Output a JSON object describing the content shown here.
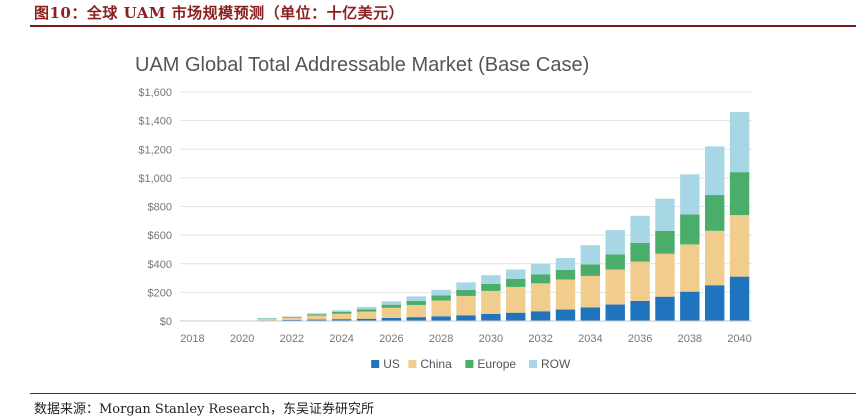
{
  "figure": {
    "header": "图10：全球 UAM 市场规模预测（单位：十亿美元）",
    "source": "数据来源：Morgan Stanley Research，东吴证券研究所"
  },
  "chart_data": {
    "type": "bar",
    "stacked": true,
    "title": "UAM Global Total Addressable Market (Base Case)",
    "xlabel": "",
    "ylabel": "",
    "ylim": [
      0,
      1600
    ],
    "grid": true,
    "legend_position": "bottom",
    "yticks": [
      0,
      200,
      400,
      600,
      800,
      1000,
      1200,
      1400,
      1600
    ],
    "ytick_labels": [
      "$0",
      "$200",
      "$400",
      "$600",
      "$800",
      "$1,000",
      "$1,200",
      "$1,400",
      "$1,600"
    ],
    "categories": [
      "2018",
      "2019",
      "2020",
      "2021",
      "2022",
      "2023",
      "2024",
      "2025",
      "2026",
      "2027",
      "2028",
      "2029",
      "2030",
      "2031",
      "2032",
      "2033",
      "2034",
      "2035",
      "2036",
      "2037",
      "2038",
      "2039",
      "2040"
    ],
    "tick_labels": [
      "2018",
      "2020",
      "2022",
      "2024",
      "2026",
      "2028",
      "2030",
      "2032",
      "2034",
      "2036",
      "2038",
      "2040"
    ],
    "series": [
      {
        "name": "US",
        "color": "#1f74bd",
        "values": [
          0,
          0,
          0,
          5,
          8,
          10,
          13,
          16,
          22,
          27,
          33,
          40,
          50,
          58,
          68,
          80,
          95,
          115,
          140,
          170,
          205,
          250,
          310
        ]
      },
      {
        "name": "China",
        "color": "#f0cd8c",
        "values": [
          0,
          0,
          0,
          10,
          15,
          28,
          38,
          50,
          70,
          85,
          110,
          135,
          160,
          180,
          195,
          210,
          220,
          245,
          275,
          300,
          330,
          380,
          430
        ]
      },
      {
        "name": "Europe",
        "color": "#4bad6a",
        "values": [
          0,
          0,
          0,
          3,
          5,
          9,
          12,
          16,
          22,
          28,
          35,
          42,
          50,
          57,
          62,
          68,
          80,
          105,
          130,
          160,
          210,
          250,
          300
        ]
      },
      {
        "name": "ROW",
        "color": "#a7d7e4",
        "values": [
          0,
          0,
          0,
          2,
          3,
          8,
          12,
          16,
          24,
          32,
          40,
          53,
          60,
          65,
          75,
          82,
          135,
          170,
          190,
          225,
          280,
          340,
          420
        ]
      }
    ]
  },
  "style": {
    "title_color": "#555555",
    "tick_color": "#777777",
    "grid_color": "#e3e3e3",
    "axis_color": "#c8c8c8"
  }
}
